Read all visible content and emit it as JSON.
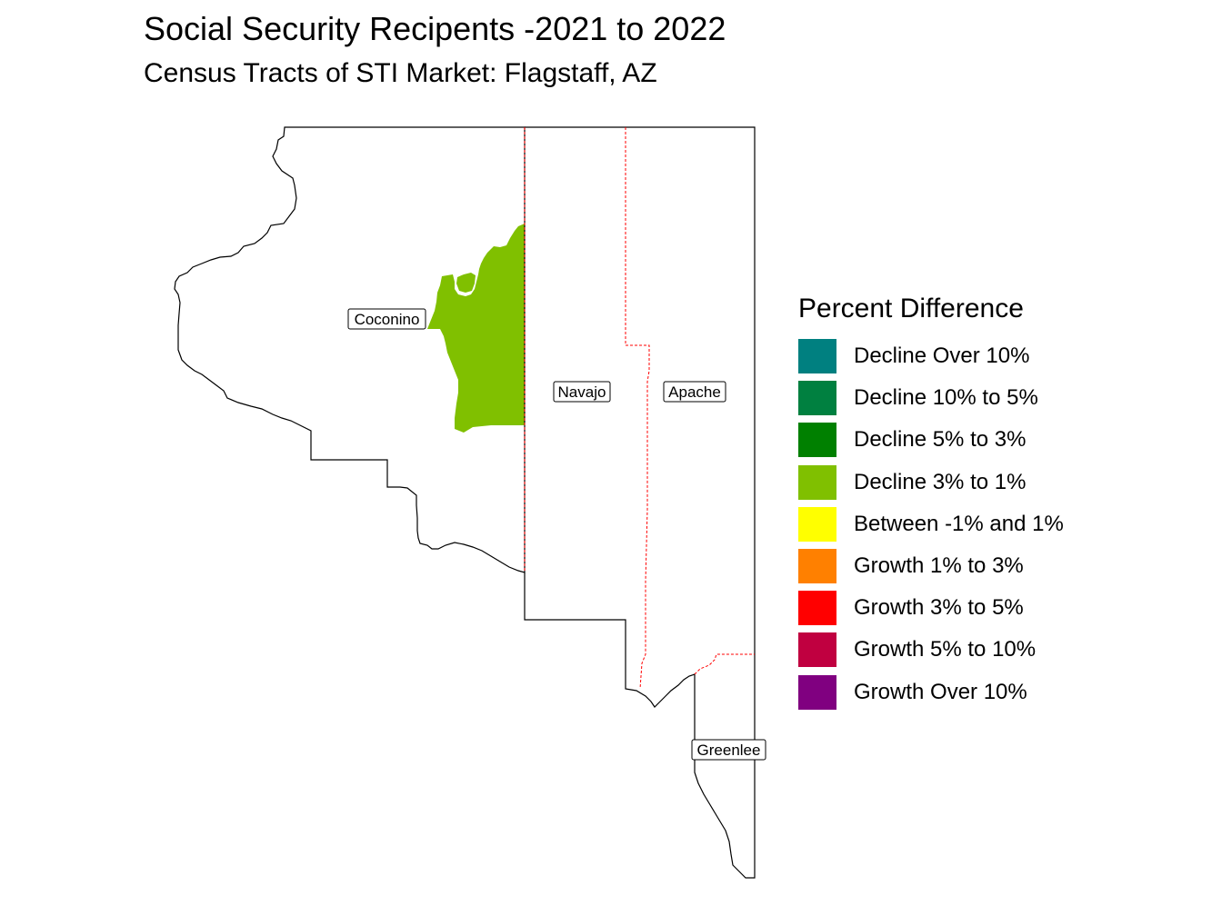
{
  "title": "Social Security Recipents -2021 to 2022",
  "subtitle": "Census Tracts of STI Market: Flagstaff, AZ",
  "map": {
    "counties": [
      {
        "name": "Coconino"
      },
      {
        "name": "Navajo"
      },
      {
        "name": "Apache"
      },
      {
        "name": "Greenlee"
      }
    ],
    "highlighted_category": "Decline 3% to 1%",
    "colors": {
      "boundary": "#000000",
      "market_boundary": "#ff0000",
      "highlighted_tracts": "#80c000"
    }
  },
  "legend": {
    "title": "Percent Difference",
    "items": [
      {
        "label": "Decline Over 10%",
        "color": "#008080"
      },
      {
        "label": "Decline 10% to 5%",
        "color": "#008040"
      },
      {
        "label": "Decline 5% to 3%",
        "color": "#008000"
      },
      {
        "label": "Decline 3% to 1%",
        "color": "#80c000"
      },
      {
        "label": "Between -1% and 1%",
        "color": "#ffff00"
      },
      {
        "label": "Growth 1% to 3%",
        "color": "#ff8000"
      },
      {
        "label": "Growth 3% to 5%",
        "color": "#ff0000"
      },
      {
        "label": "Growth 5% to 10%",
        "color": "#c00040"
      },
      {
        "label": "Growth Over 10%",
        "color": "#800080"
      }
    ]
  }
}
